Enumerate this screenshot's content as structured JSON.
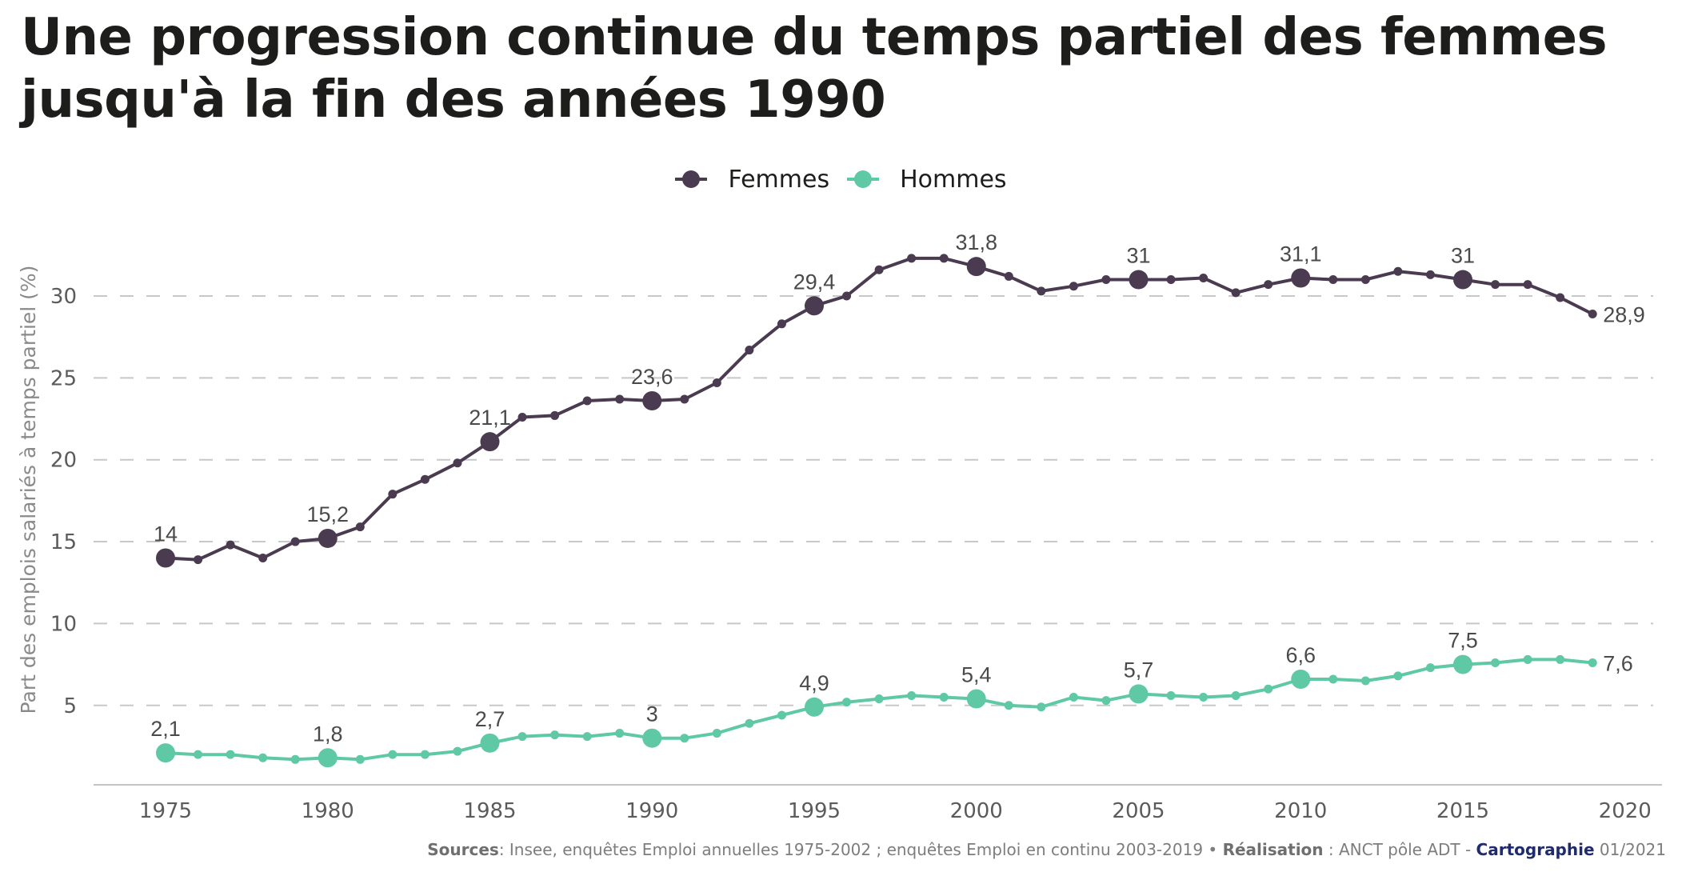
{
  "title": "Une progression continue du temps partiel des femmes jusqu'à la fin des années 1990",
  "legend": [
    {
      "label": "Femmes",
      "color": "#4b3b50"
    },
    {
      "label": "Hommes",
      "color": "#5fc8a5"
    }
  ],
  "footer": {
    "sources_label": "Sources",
    "sources_text": ": Insee, enquêtes Emploi annuelles 1975-2002 ; enquêtes Emploi en continu 2003-2019 • ",
    "realisation_label": "Réalisation",
    "realisation_text": " : ANCT pôle ADT - ",
    "cartographie_label": "Cartographie",
    "cartographie_text": " 01/2021"
  },
  "chart_data": {
    "type": "line",
    "title": "Une progression continue du temps partiel des femmes jusqu'à la fin des années 1990",
    "xlabel": "",
    "ylabel": "Part des emplois salariés à temps partiel (%)",
    "x": [
      1975,
      1976,
      1977,
      1978,
      1979,
      1980,
      1981,
      1982,
      1983,
      1984,
      1985,
      1986,
      1987,
      1988,
      1989,
      1990,
      1991,
      1992,
      1993,
      1994,
      1995,
      1996,
      1997,
      1998,
      1999,
      2000,
      2001,
      2002,
      2003,
      2004,
      2005,
      2006,
      2007,
      2008,
      2009,
      2010,
      2011,
      2012,
      2013,
      2014,
      2015,
      2016,
      2017,
      2018,
      2019
    ],
    "xticks": [
      1975,
      1980,
      1985,
      1990,
      1995,
      2000,
      2005,
      2010,
      2015,
      2020
    ],
    "xlim": [
      1972.8,
      2021.2
    ],
    "yticks": [
      5,
      10,
      15,
      20,
      25,
      30
    ],
    "ylim": [
      0.2,
      33.5
    ],
    "grid": "horizontal dashed",
    "legend_position": "top-center",
    "decimal_separator": ",",
    "highlighted_years": [
      1975,
      1980,
      1985,
      1990,
      1995,
      2000,
      2005,
      2010,
      2015
    ],
    "end_label_year": 2019,
    "series": [
      {
        "name": "Femmes",
        "color": "#4b3b50",
        "values": [
          14.0,
          13.9,
          14.8,
          14.0,
          15.0,
          15.2,
          15.9,
          17.9,
          18.8,
          19.8,
          21.1,
          22.6,
          22.7,
          23.6,
          23.7,
          23.6,
          23.7,
          24.7,
          26.7,
          28.3,
          29.4,
          30.0,
          31.6,
          32.3,
          32.3,
          31.8,
          31.2,
          30.3,
          30.6,
          31.0,
          31.0,
          31.0,
          31.1,
          30.2,
          30.7,
          31.1,
          31.0,
          31.0,
          31.5,
          31.3,
          31.0,
          30.7,
          30.7,
          29.9,
          28.9
        ]
      },
      {
        "name": "Hommes",
        "color": "#5fc8a5",
        "values": [
          2.1,
          2.0,
          2.0,
          1.8,
          1.7,
          1.8,
          1.7,
          2.0,
          2.0,
          2.2,
          2.7,
          3.1,
          3.2,
          3.1,
          3.3,
          3.0,
          3.0,
          3.3,
          3.9,
          4.4,
          4.9,
          5.2,
          5.4,
          5.6,
          5.5,
          5.4,
          5.0,
          4.9,
          5.5,
          5.3,
          5.7,
          5.6,
          5.5,
          5.6,
          6.0,
          6.6,
          6.6,
          6.5,
          6.8,
          7.3,
          7.5,
          7.6,
          7.8,
          7.8,
          7.6
        ]
      }
    ]
  }
}
